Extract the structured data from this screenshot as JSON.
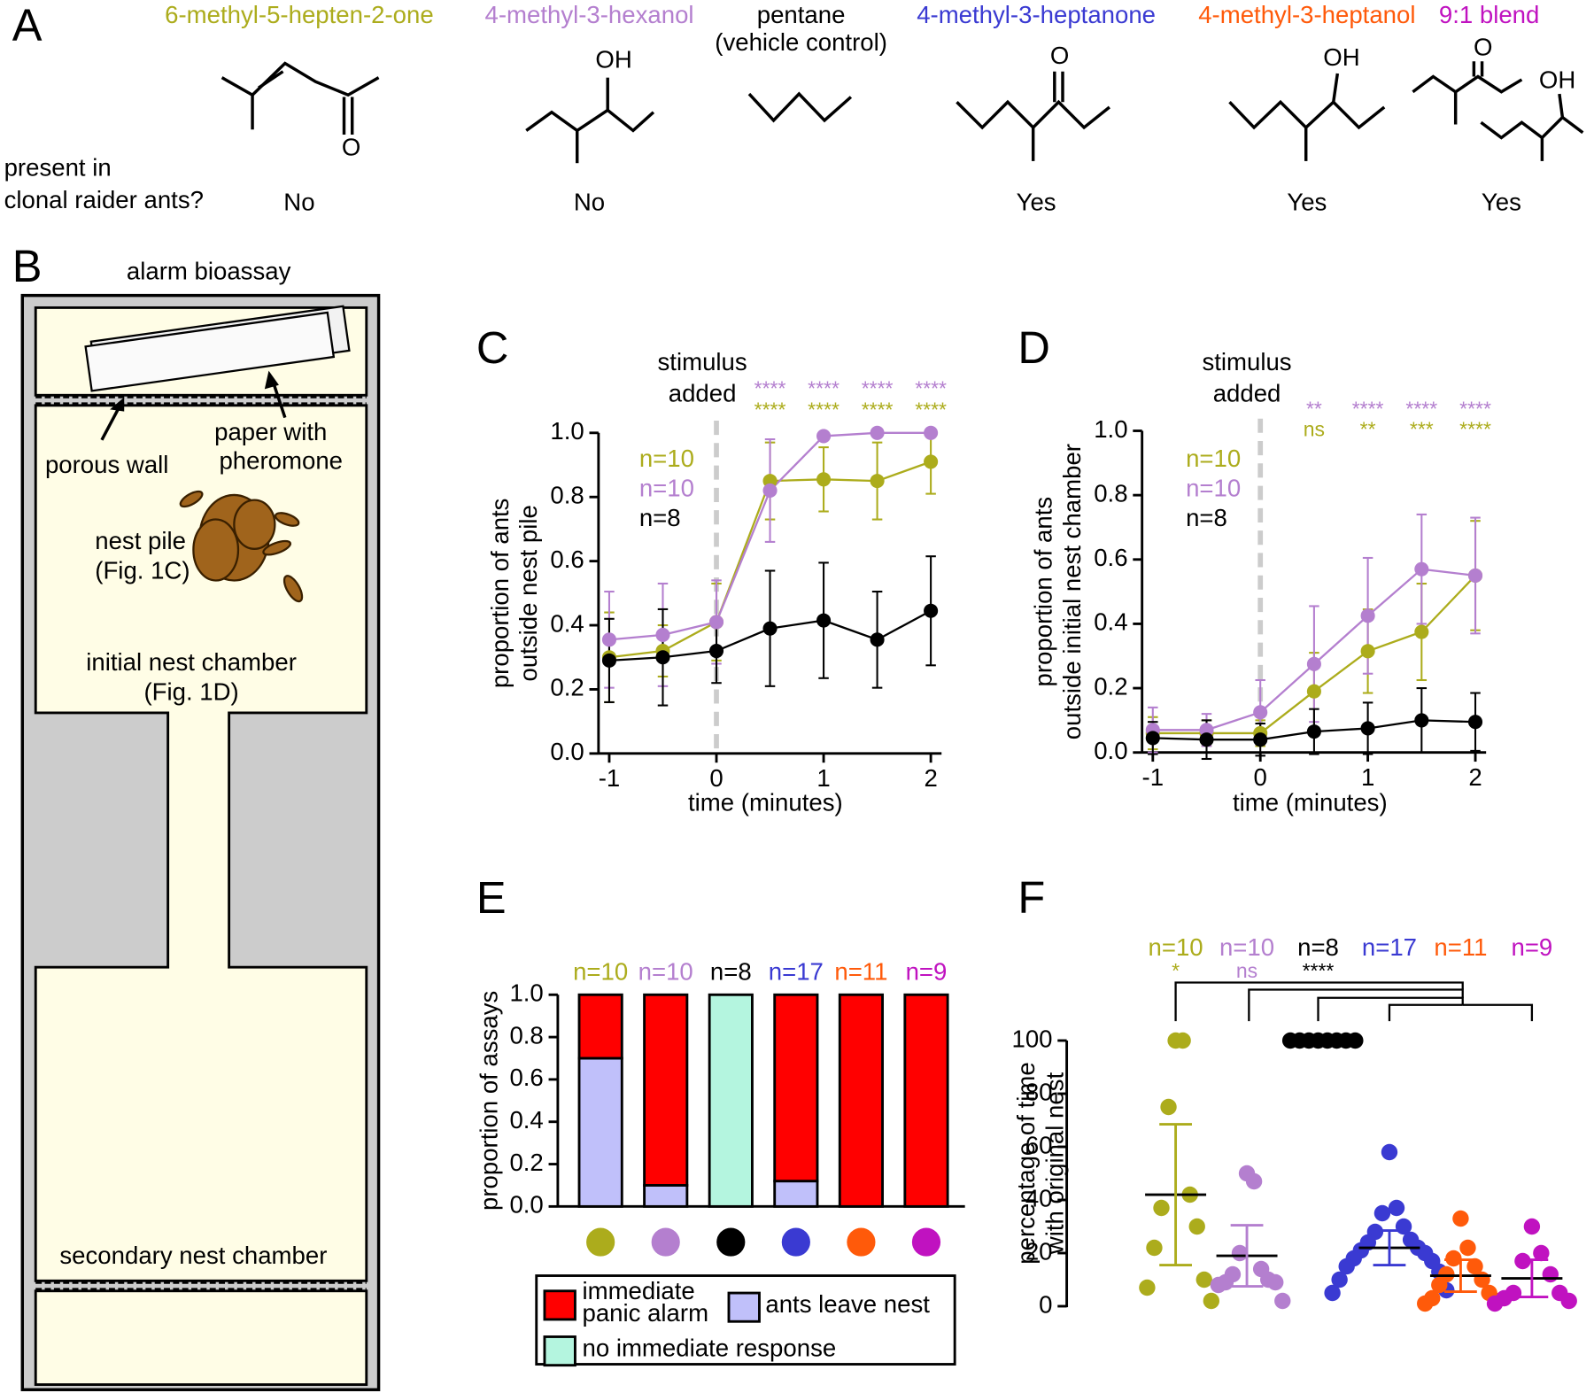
{
  "panel_a": {
    "letter": "A",
    "question": [
      "present in",
      "clonal raider ants?"
    ],
    "compounds": [
      {
        "name": [
          "6-methyl-5-hepten-2-one"
        ],
        "color": "#acac1c",
        "atoms": [
          "O"
        ],
        "present": "No"
      },
      {
        "name": [
          "4-methyl-3-hexanol"
        ],
        "color": "#b47fcf",
        "atoms": [
          "OH"
        ],
        "present": "No"
      },
      {
        "name": [
          "pentane",
          "(vehicle control)"
        ],
        "color": "#000000"
      },
      {
        "name": [
          "4-methyl-3-heptanone"
        ],
        "color": "#3a3ad2",
        "atoms": [
          "O"
        ],
        "present": "Yes"
      },
      {
        "name": [
          "4-methyl-3-heptanol"
        ],
        "color": "#ff5a0a",
        "atoms": [
          "OH"
        ],
        "present": "Yes"
      },
      {
        "name": [
          "9:1 blend"
        ],
        "color": "#c012c0",
        "atoms": [
          "O",
          "OH"
        ],
        "present": "Yes"
      }
    ]
  },
  "panel_b": {
    "letter": "B",
    "title": "alarm bioassay",
    "porous_wall": "porous wall",
    "paper": [
      "paper with",
      "pheromone"
    ],
    "nest_pile": [
      "nest pile",
      "(Fig. 1C)"
    ],
    "initial_chamber": [
      "initial nest chamber",
      "(Fig. 1D)"
    ],
    "secondary_chamber": "secondary nest chamber"
  },
  "chart_data": [
    {
      "type": "line",
      "panel_letter": "C",
      "x": [
        -1,
        -0.5,
        0,
        0.5,
        1,
        1.5,
        2
      ],
      "xlim": [
        -1.1,
        2.1
      ],
      "xticks": [
        -1,
        0,
        1,
        2
      ],
      "ylim": [
        0,
        1
      ],
      "yticks": [
        {
          "value": 0,
          "label": "0.0"
        },
        0.2,
        0.4,
        0.6,
        0.8,
        {
          "value": 1,
          "label": "1.0"
        }
      ],
      "xlabel": "time (minutes)",
      "ylabel": [
        "proportion of ants",
        "outside nest pile"
      ],
      "annotation": [
        "stimulus",
        "added"
      ],
      "stimulus_x": 0,
      "series": [
        {
          "name": "n=10",
          "color": "#acac1c",
          "values": [
            0.3,
            0.32,
            0.41,
            0.85,
            0.855,
            0.85,
            0.91
          ],
          "errors": [
            0.14,
            0.08,
            0.12,
            0.12,
            0.1,
            0.12,
            0.1
          ],
          "significance": [
            null,
            null,
            null,
            "****",
            "****",
            "****",
            "****"
          ]
        },
        {
          "name": "n=10",
          "color": "#b47fcf",
          "values": [
            0.355,
            0.37,
            0.41,
            0.82,
            0.99,
            1.0,
            1.0
          ],
          "errors": [
            0.15,
            0.16,
            0.13,
            0.16,
            0.01,
            0,
            0
          ],
          "significance": [
            null,
            null,
            null,
            "****",
            "****",
            "****",
            "****"
          ]
        },
        {
          "name": "n=8",
          "color": "#000000",
          "values": [
            0.29,
            0.3,
            0.32,
            0.39,
            0.415,
            0.355,
            0.445
          ],
          "errors": [
            0.13,
            0.15,
            0.1,
            0.18,
            0.18,
            0.15,
            0.17
          ]
        }
      ]
    },
    {
      "type": "line",
      "panel_letter": "D",
      "x": [
        -1,
        -0.5,
        0,
        0.5,
        1,
        1.5,
        2
      ],
      "xlim": [
        -1.1,
        2.1
      ],
      "xticks": [
        -1,
        0,
        1,
        2
      ],
      "ylim": [
        0,
        1
      ],
      "yticks": [
        {
          "value": 0,
          "label": "0.0"
        },
        0.2,
        0.4,
        0.6,
        0.8,
        {
          "value": 1,
          "label": "1.0"
        }
      ],
      "xlabel": "time (minutes)",
      "ylabel": [
        "proportion of ants",
        "outside initial nest chamber"
      ],
      "annotation": [
        "stimulus",
        "added"
      ],
      "stimulus_x": 0,
      "series": [
        {
          "name": "n=10",
          "color": "#acac1c",
          "values": [
            0.06,
            0.06,
            0.06,
            0.19,
            0.315,
            0.375,
            0.55
          ],
          "errors": [
            0.05,
            0.04,
            0.04,
            0.12,
            0.13,
            0.15,
            0.17
          ],
          "significance": [
            null,
            null,
            null,
            "ns",
            "**",
            "***",
            "****"
          ]
        },
        {
          "name": "n=10",
          "color": "#b47fcf",
          "values": [
            0.07,
            0.07,
            0.125,
            0.275,
            0.425,
            0.57,
            0.55
          ],
          "errors": [
            0.07,
            0.05,
            0.1,
            0.18,
            0.18,
            0.17,
            0.18
          ],
          "significance": [
            null,
            null,
            null,
            "**",
            "****",
            "****",
            "****"
          ]
        },
        {
          "name": "n=8",
          "color": "#000000",
          "values": [
            0.045,
            0.04,
            0.04,
            0.065,
            0.075,
            0.1,
            0.095
          ],
          "errors": [
            0.05,
            0.06,
            0.05,
            0.07,
            0.08,
            0.1,
            0.09
          ]
        }
      ]
    },
    {
      "type": "bar",
      "stacked": true,
      "panel_letter": "E",
      "categories": [
        "n=10",
        "n=10",
        "n=8",
        "n=17",
        "n=11",
        "n=9"
      ],
      "category_colors": [
        "#acac1c",
        "#b47fcf",
        "#000000",
        "#3a3ad2",
        "#ff5a0a",
        "#c012c0"
      ],
      "ylabel": "proportion of assays",
      "ylim": [
        0,
        1
      ],
      "yticks": [
        {
          "value": 0,
          "label": "0.0"
        },
        0.2,
        0.4,
        0.6,
        0.8,
        {
          "value": 1,
          "label": "1.0"
        }
      ],
      "series": [
        {
          "name": "ants leave nest",
          "color": "#c0c0fa",
          "values": [
            0.7,
            0.1,
            0,
            0.12,
            0,
            0
          ]
        },
        {
          "name": "immediate panic alarm",
          "color": "#ff0000",
          "values": [
            0.3,
            0.9,
            0,
            0.88,
            1,
            1
          ]
        },
        {
          "name": "no immediate response",
          "color": "#b4f5df",
          "values": [
            0,
            0,
            1,
            0,
            0,
            0
          ]
        }
      ]
    },
    {
      "type": "scatter",
      "panel_letter": "F",
      "ylabel": [
        "percentage of time",
        "with original nest"
      ],
      "ylim": [
        0,
        100
      ],
      "yticks": [
        0,
        20,
        40,
        60,
        80,
        100
      ],
      "series": [
        {
          "name": "n=10",
          "color": "#acac1c",
          "values": [
            100,
            100,
            75,
            42,
            37,
            30,
            22,
            10,
            7,
            2
          ],
          "mean": 42,
          "sd": 26.5,
          "significance": "*"
        },
        {
          "name": "n=10",
          "color": "#b47fcf",
          "values": [
            50,
            47,
            20,
            14,
            12,
            10,
            9,
            9,
            8,
            2
          ],
          "mean": 19,
          "sd": 11.5,
          "significance": "ns"
        },
        {
          "name": "n=8",
          "color": "#000000",
          "values": [
            100,
            100,
            100,
            100,
            100,
            100,
            100,
            100
          ],
          "mean": 100,
          "sd": 0,
          "significance": "****"
        },
        {
          "name": "n=17",
          "color": "#3a3ad2",
          "values": [
            58,
            37,
            35,
            30,
            28,
            25,
            24,
            22,
            21,
            20,
            18,
            17,
            15,
            13,
            10,
            6,
            5
          ],
          "mean": 22,
          "sd": 6.5
        },
        {
          "name": "n=11",
          "color": "#ff5a0a",
          "values": [
            33,
            22,
            18,
            15,
            12,
            10,
            8,
            5,
            3,
            2,
            1
          ],
          "mean": 11.5,
          "sd": 6
        },
        {
          "name": "n=9",
          "color": "#c012c0",
          "values": [
            30,
            20,
            17,
            12,
            5,
            5,
            3,
            2,
            1
          ],
          "mean": 10.5,
          "sd": 7
        }
      ]
    }
  ]
}
